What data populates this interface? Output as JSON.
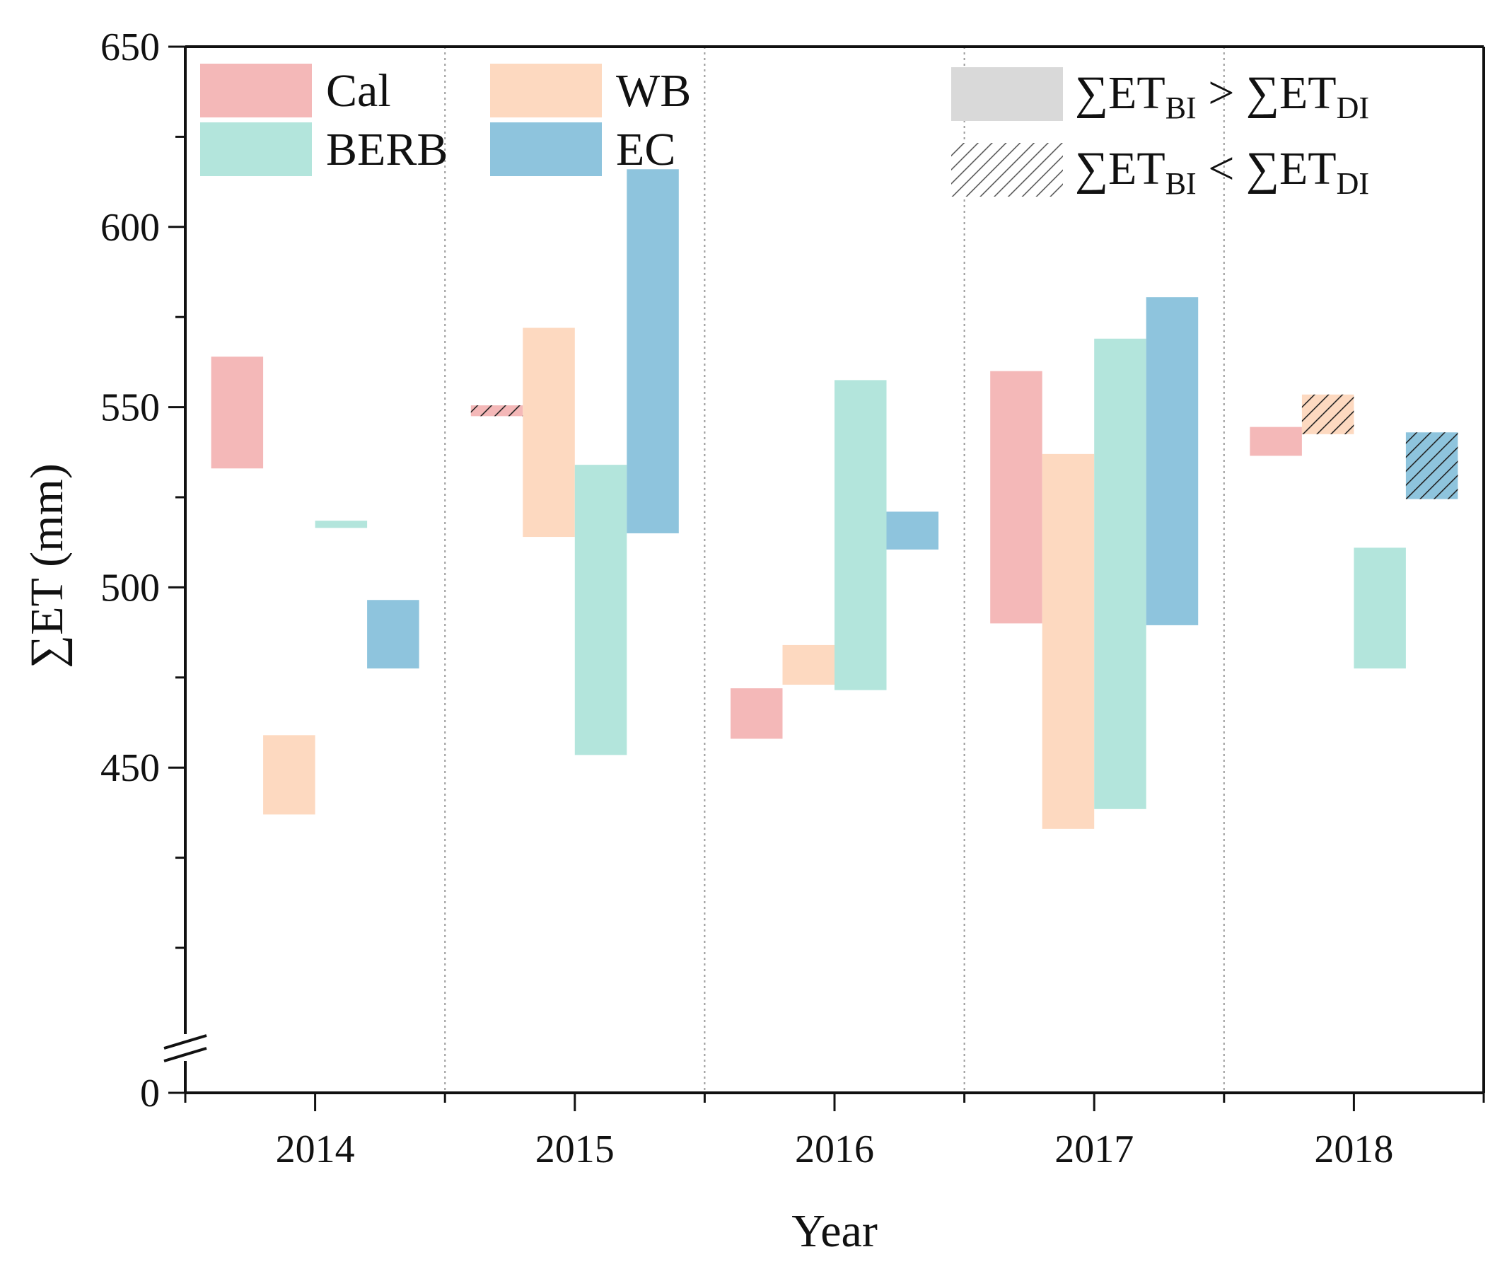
{
  "chart_data": {
    "type": "floating-bar",
    "xlabel": "Year",
    "ylabel": "∑ET (mm)",
    "categories": [
      "2014",
      "2015",
      "2016",
      "2017",
      "2018"
    ],
    "ylim": [
      400,
      650
    ],
    "y_break": {
      "below": 400,
      "shown_value": 0
    },
    "y_ticks": [
      450,
      500,
      550,
      600,
      650
    ],
    "y_tick_labels": [
      "0",
      "450",
      "500",
      "550",
      "600",
      "650"
    ],
    "series": [
      {
        "key": "cal",
        "name": "Cal",
        "color": "#f4b8b8",
        "ranges": [
          [
            533,
            564
          ],
          [
            547.5,
            550.5
          ],
          [
            458,
            472
          ],
          [
            490,
            560
          ],
          [
            536.5,
            544.5
          ]
        ],
        "hatched": [
          false,
          true,
          false,
          false,
          false
        ]
      },
      {
        "key": "wb",
        "name": "WB",
        "color": "#fdd9c0",
        "ranges": [
          [
            437,
            459
          ],
          [
            514,
            572
          ],
          [
            473,
            484
          ],
          [
            433,
            537
          ],
          [
            542.5,
            553.5
          ]
        ],
        "hatched": [
          false,
          false,
          false,
          false,
          true
        ]
      },
      {
        "key": "berb",
        "name": "BERB",
        "color": "#b3e5dc",
        "ranges": [
          [
            516.5,
            518.5
          ],
          [
            453.5,
            534
          ],
          [
            471.5,
            557.5
          ],
          [
            438.5,
            569
          ],
          [
            477.5,
            511
          ]
        ],
        "hatched": [
          false,
          false,
          false,
          false,
          false
        ]
      },
      {
        "key": "ec",
        "name": "EC",
        "color": "#8ec4dd",
        "ranges": [
          [
            477.5,
            496.5
          ],
          [
            515,
            616
          ],
          [
            510.5,
            521
          ],
          [
            489.5,
            580.5
          ],
          [
            524.5,
            543
          ]
        ],
        "hatched": [
          false,
          false,
          false,
          false,
          true
        ]
      }
    ],
    "legend": {
      "placement": "top",
      "pattern_items": [
        {
          "key": "solid",
          "main": "∑ET",
          "sub1": "BI",
          "op": ">",
          "main2": "∑ET",
          "sub2": "DI"
        },
        {
          "key": "hatched",
          "main": "∑ET",
          "sub1": "BI",
          "op": "<",
          "main2": "∑ET",
          "sub2": "DI"
        }
      ]
    },
    "grid": false,
    "category_separators": true
  }
}
